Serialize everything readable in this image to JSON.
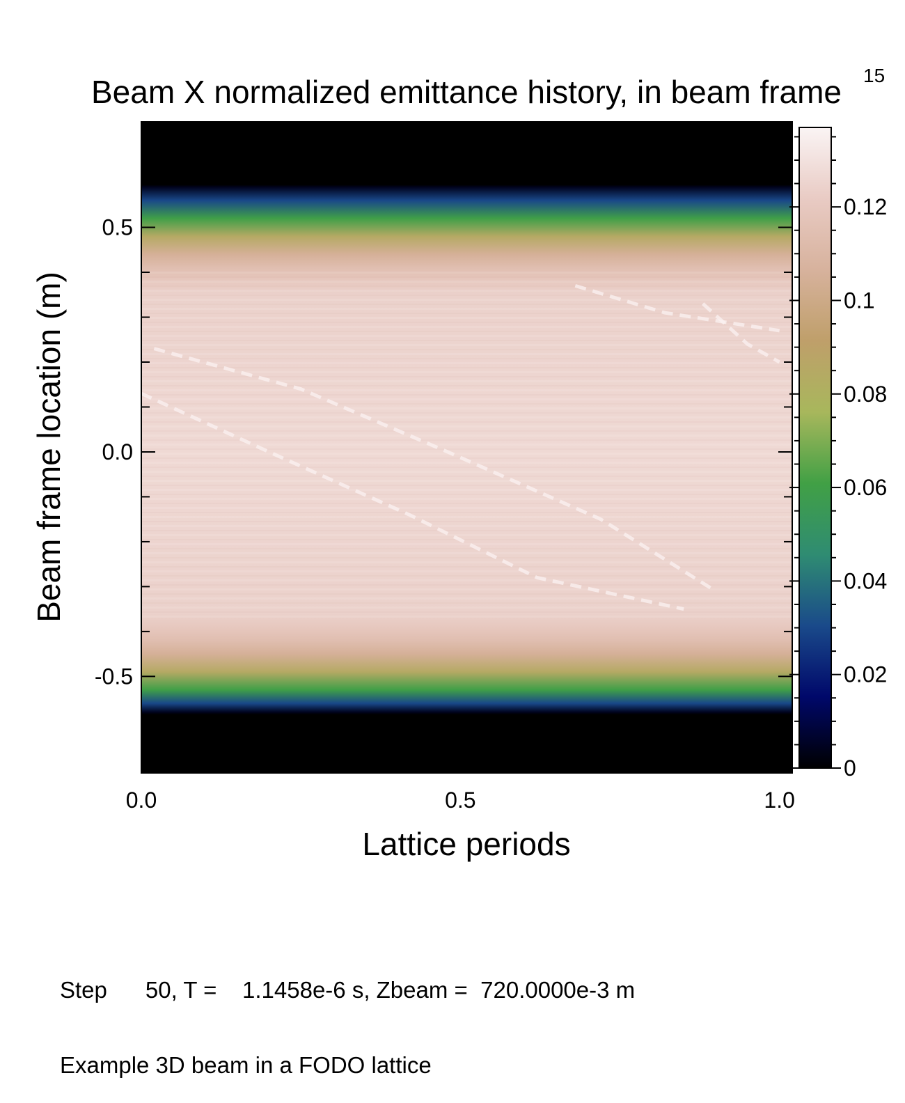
{
  "chart_data": {
    "type": "heatmap",
    "title": "Beam X normalized emittance history, in beam frame",
    "page_number": "15",
    "xlabel": "Lattice periods",
    "ylabel": "Beam frame location (m)",
    "xlim": [
      0.0,
      1.02
    ],
    "ylim": [
      -0.715,
      0.735
    ],
    "x_ticks": [
      {
        "value": 0.0,
        "label": "0.0"
      },
      {
        "value": 0.5,
        "label": "0.5"
      },
      {
        "value": 1.0,
        "label": "1.0"
      }
    ],
    "y_ticks": [
      {
        "value": 0.5,
        "label": "0.5"
      },
      {
        "value": 0.0,
        "label": "0.0"
      },
      {
        "value": -0.5,
        "label": "-0.5"
      }
    ],
    "colorbar": {
      "range": [
        0,
        0.137
      ],
      "ticks": [
        {
          "value": 0,
          "label": "0"
        },
        {
          "value": 0.02,
          "label": "0.02"
        },
        {
          "value": 0.04,
          "label": "0.04"
        },
        {
          "value": 0.06,
          "label": "0.06"
        },
        {
          "value": 0.08,
          "label": "0.08"
        },
        {
          "value": 0.1,
          "label": "0.1"
        },
        {
          "value": 0.12,
          "label": "0.12"
        }
      ],
      "colors": [
        "#000000",
        "#00086a",
        "#1a4a8a",
        "#2f8c72",
        "#41a045",
        "#a8b75c",
        "#bf9f6a",
        "#d7b29d",
        "#e9cbc4",
        "#faf4f4"
      ]
    },
    "beam_profile": {
      "y": [
        0.735,
        0.595,
        0.59,
        0.56,
        0.52,
        0.48,
        0.44,
        0.41,
        0.38,
        0.35,
        0.0,
        -0.36,
        -0.39,
        -0.42,
        -0.45,
        -0.49,
        -0.53,
        -0.56,
        -0.58,
        -0.585,
        -0.715
      ],
      "value": [
        0,
        0,
        0.004,
        0.03,
        0.06,
        0.085,
        0.105,
        0.114,
        0.12,
        0.124,
        0.127,
        0.124,
        0.12,
        0.114,
        0.105,
        0.085,
        0.06,
        0.03,
        0.004,
        0,
        0
      ]
    },
    "highlight_streaks": [
      {
        "x": [
          0.02,
          0.25,
          0.48,
          0.72,
          0.9
        ],
        "y": [
          0.23,
          0.14,
          0.0,
          -0.15,
          -0.31
        ]
      },
      {
        "x": [
          0.0,
          0.2,
          0.42,
          0.62,
          0.85
        ],
        "y": [
          0.13,
          0.0,
          -0.14,
          -0.28,
          -0.35
        ]
      },
      {
        "x": [
          0.68,
          0.82,
          1.0
        ],
        "y": [
          0.37,
          0.31,
          0.27
        ]
      },
      {
        "x": [
          0.88,
          0.95,
          1.0
        ],
        "y": [
          0.33,
          0.24,
          0.2
        ]
      }
    ]
  },
  "footer": {
    "line1": "Step      50, T =    1.1458e-6 s, Zbeam =  720.0000e-3 m",
    "line2": "Example 3D beam in a FODO lattice"
  }
}
